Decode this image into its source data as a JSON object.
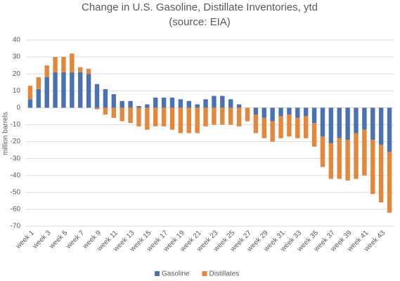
{
  "chart_data": {
    "type": "bar",
    "stacked": true,
    "title": "Change in U.S. Gasoline, Distillate Inventories, ytd",
    "subtitle": "(source: EIA)",
    "y_label": "million barrels",
    "categories": [
      "week 1",
      null,
      "week 3",
      null,
      "week 5",
      null,
      "week 7",
      null,
      "week 9",
      null,
      "week 11",
      null,
      "week 13",
      null,
      "week 15",
      null,
      "week 17",
      null,
      "week 19",
      null,
      "week 21",
      null,
      "week 23",
      null,
      "week 25",
      null,
      "week 27",
      null,
      "week 29",
      null,
      "week 31",
      null,
      "week 33",
      null,
      "week 35",
      null,
      "week 37",
      null,
      "week 39",
      null,
      "week 41",
      null,
      "week 43",
      null
    ],
    "series": [
      {
        "name": "Gasoline",
        "color": "#4a72b3",
        "values": [
          5,
          11,
          18,
          21,
          21,
          21,
          21,
          20,
          14,
          11,
          8,
          4,
          4,
          1,
          2,
          6,
          6,
          6,
          5,
          4,
          2,
          5,
          7,
          7,
          5,
          2,
          0,
          -4,
          -6,
          -8,
          -5,
          -4,
          -6,
          -5,
          -9,
          -17,
          -21,
          -18,
          -19,
          -15,
          -13,
          -19,
          -22,
          -26
        ]
      },
      {
        "name": "Distillates",
        "color": "#e5873b",
        "values": [
          8,
          7,
          7,
          9,
          9,
          11,
          3,
          3,
          -1,
          -4,
          -6,
          -8,
          -9,
          -11,
          -13,
          -11,
          -11,
          -13,
          -15,
          -15,
          -15,
          -11,
          -10,
          -10,
          -10,
          -11,
          -8,
          -11,
          -12,
          -12,
          -13,
          -13,
          -12,
          -13,
          -14,
          -18,
          -21,
          -24,
          -24,
          -27,
          -27,
          -32,
          -34,
          -36
        ]
      }
    ],
    "ylim": [
      -70,
      40
    ],
    "yticks": [
      40,
      30,
      20,
      10,
      0,
      -10,
      -20,
      -30,
      -40,
      -50,
      -60,
      -70
    ],
    "grid": true,
    "legend": "bottom"
  }
}
